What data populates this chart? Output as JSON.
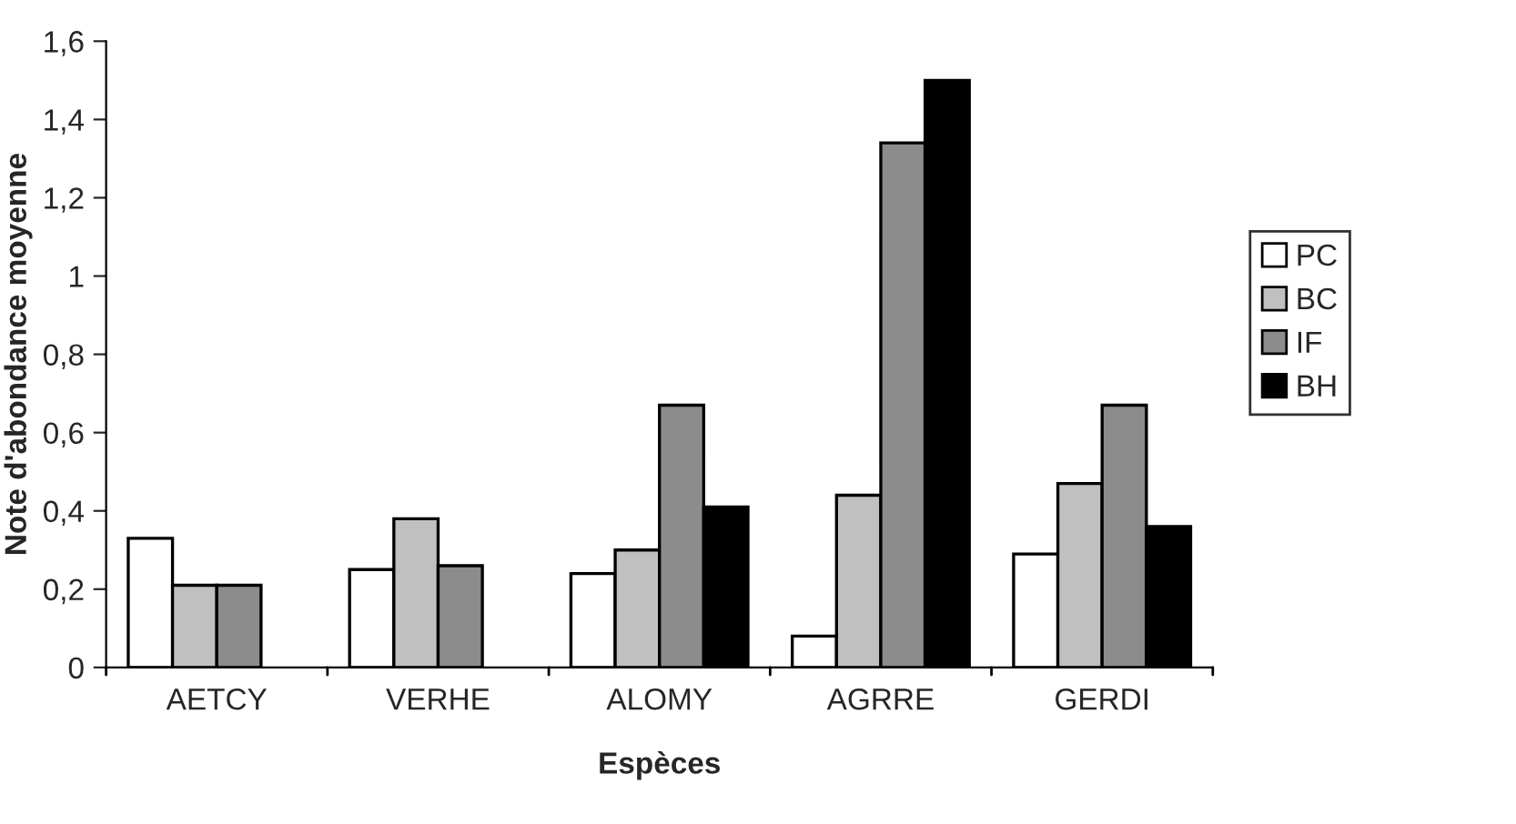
{
  "chart_data": {
    "type": "bar",
    "xlabel": "Espèces",
    "ylabel": "Note d'abondance moyenne",
    "categories": [
      "AETCY",
      "VERHE",
      "ALOMY",
      "AGRRE",
      "GERDI"
    ],
    "series": [
      {
        "name": "PC",
        "color": "#ffffff",
        "values": [
          0.33,
          0.25,
          0.24,
          0.08,
          0.29
        ]
      },
      {
        "name": "BC",
        "color": "#c0c0c0",
        "values": [
          0.21,
          0.38,
          0.3,
          0.44,
          0.47
        ]
      },
      {
        "name": "IF",
        "color": "#8c8c8c",
        "values": [
          0.21,
          0.26,
          0.67,
          1.34,
          0.67
        ]
      },
      {
        "name": "BH",
        "color": "#000000",
        "values": [
          null,
          null,
          0.41,
          1.5,
          0.36
        ]
      }
    ],
    "ylim": [
      0,
      1.6
    ],
    "yticks": [
      {
        "value": 0,
        "label": "0"
      },
      {
        "value": 0.2,
        "label": "0,2"
      },
      {
        "value": 0.4,
        "label": "0,4"
      },
      {
        "value": 0.6,
        "label": "0,6"
      },
      {
        "value": 0.8,
        "label": "0,8"
      },
      {
        "value": 1,
        "label": "1"
      },
      {
        "value": 1.2,
        "label": "1,2"
      },
      {
        "value": 1.4,
        "label": "1,4"
      },
      {
        "value": 1.6,
        "label": "1,6"
      }
    ],
    "grid": false,
    "legend": "right"
  }
}
